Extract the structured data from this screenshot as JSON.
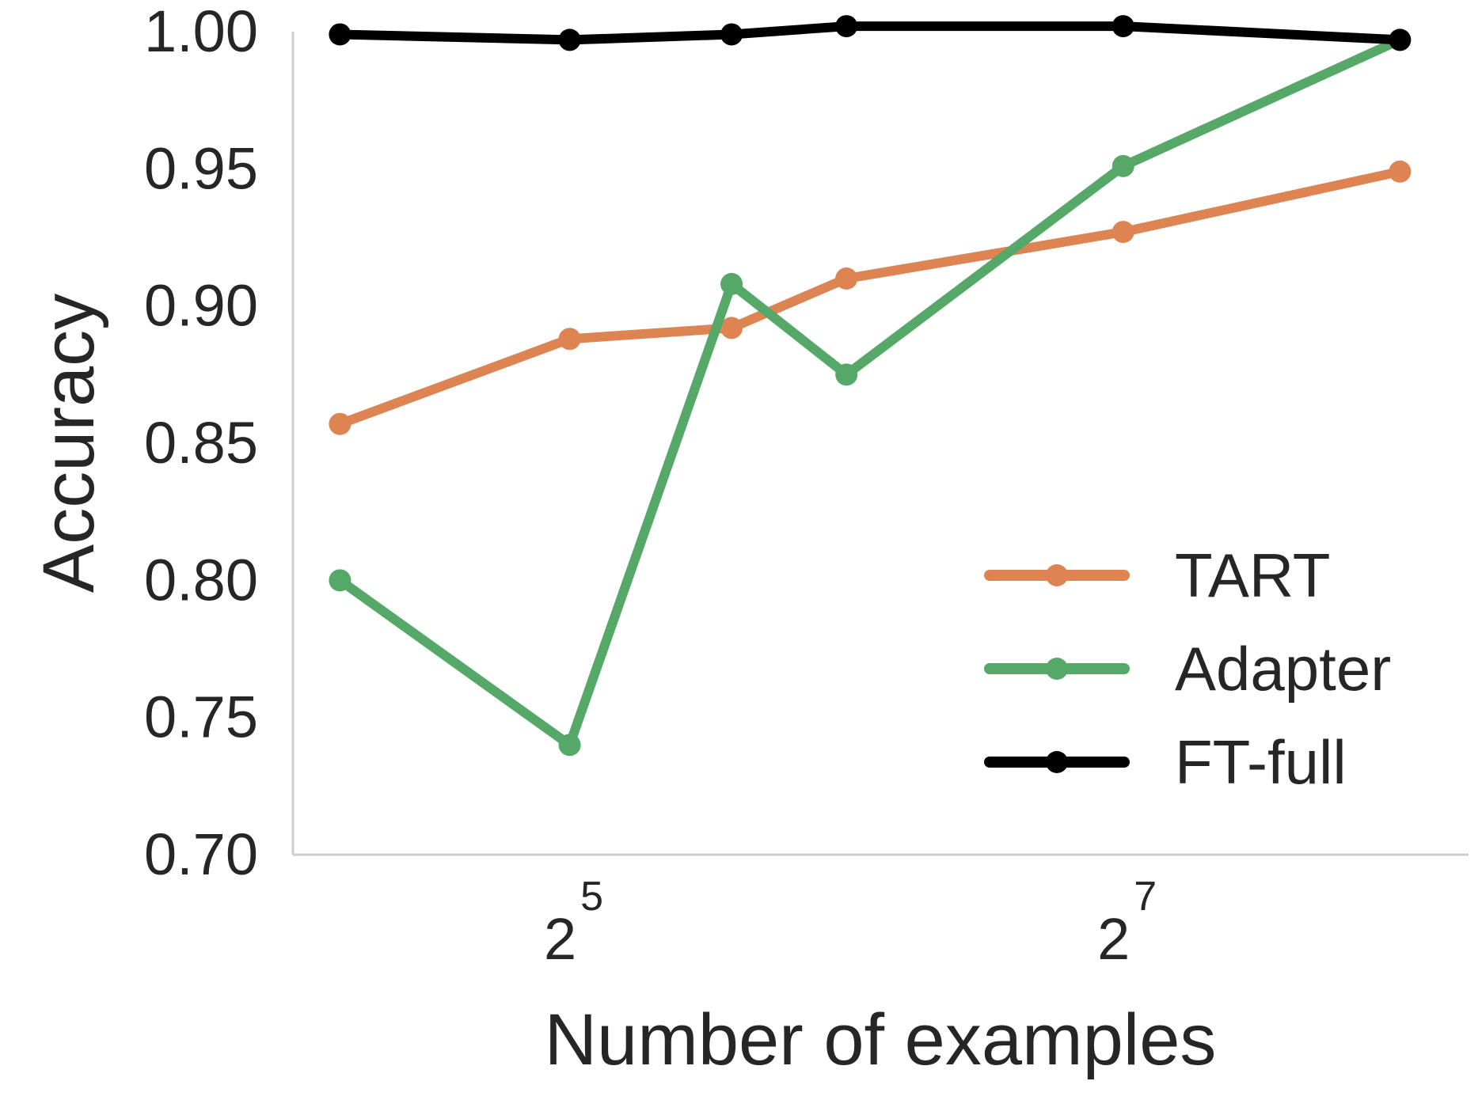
{
  "chart_data": {
    "type": "line",
    "title": "",
    "xlabel": "Number of examples",
    "ylabel": "Accuracy",
    "x_scale": "log2",
    "x": [
      18,
      32,
      48,
      64,
      128,
      256
    ],
    "xticks": [
      {
        "value": 32,
        "base": "2",
        "exp": "5"
      },
      {
        "value": 128,
        "base": "2",
        "exp": "7"
      }
    ],
    "xlim": [
      16,
      304
    ],
    "ylim": [
      0.7,
      1.0
    ],
    "yticks": [
      0.7,
      0.75,
      0.8,
      0.85,
      0.9,
      0.95,
      1.0
    ],
    "ytick_labels": [
      "0.70",
      "0.75",
      "0.80",
      "0.85",
      "0.90",
      "0.95",
      "1.00"
    ],
    "grid": false,
    "legend_position": "lower-right",
    "series": [
      {
        "name": "TART",
        "color": "#dd8452",
        "values": [
          0.857,
          0.888,
          0.892,
          0.91,
          0.927,
          0.949
        ]
      },
      {
        "name": "Adapter",
        "color": "#55a868",
        "values": [
          0.8,
          0.74,
          0.908,
          0.875,
          0.951,
          0.997
        ]
      },
      {
        "name": "FT-full",
        "color": "#000000",
        "values": [
          0.999,
          0.997,
          0.999,
          1.002,
          1.002,
          0.997
        ]
      }
    ]
  }
}
